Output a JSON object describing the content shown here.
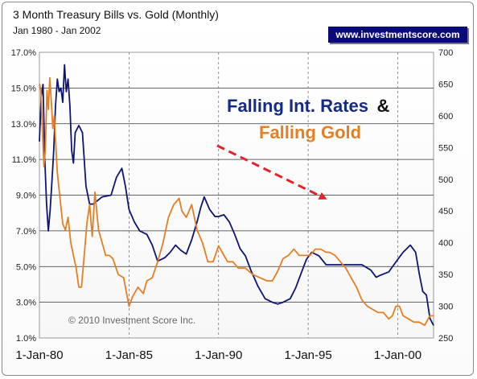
{
  "header": {
    "title": "3 Month Treasury Bills vs. Gold (Monthly)",
    "subtitle": "Jan 1980 - Jan 2002",
    "brand": "www.investmentscore.com"
  },
  "annotation": {
    "line1_part1": "Falling Int. Rates",
    "line1_part2": "&",
    "line2": "Falling Gold"
  },
  "copyright": "© 2010 Investment Score Inc.",
  "colors": {
    "tbill": "#0b1676",
    "gold": "#e67e22",
    "arrow": "#e3232c",
    "brand_bg": "#0a0a78"
  },
  "chart_data": {
    "type": "line",
    "x_ticks": [
      "1-Jan-80",
      "1-Jan-85",
      "1-Jan-90",
      "1-Jan-95",
      "1-Jan-00"
    ],
    "x_range": [
      1980.0,
      2002.0
    ],
    "y_left_ticks": [
      "1.0%",
      "3.0%",
      "5.0%",
      "7.0%",
      "9.0%",
      "11.0%",
      "13.0%",
      "15.0%",
      "17.0%"
    ],
    "y_left_range": [
      1.0,
      17.0
    ],
    "y_right_ticks": [
      "250",
      "300",
      "350",
      "400",
      "450",
      "500",
      "550",
      "600",
      "650",
      "700"
    ],
    "y_right_range": [
      250,
      700
    ],
    "grid": true,
    "series": [
      {
        "axis": "left",
        "x": [
          1980.0,
          1980.1,
          1980.2,
          1980.3,
          1980.4,
          1980.5,
          1980.6,
          1980.7,
          1980.8,
          1980.9,
          1981.0,
          1981.1,
          1981.2,
          1981.3,
          1981.4,
          1981.5,
          1981.6,
          1981.7,
          1981.8,
          1981.9,
          1982.0,
          1982.2,
          1982.4,
          1982.6,
          1982.8,
          1983.0,
          1983.5,
          1984.0,
          1984.3,
          1984.6,
          1984.8,
          1985.0,
          1985.3,
          1985.6,
          1986.0,
          1986.3,
          1986.6,
          1987.0,
          1987.3,
          1987.6,
          1987.9,
          1988.2,
          1988.5,
          1988.8,
          1989.0,
          1989.2,
          1989.5,
          1989.8,
          1990.0,
          1990.3,
          1990.6,
          1990.9,
          1991.2,
          1991.5,
          1991.8,
          1992.2,
          1992.6,
          1993.0,
          1993.3,
          1993.6,
          1994.0,
          1994.3,
          1994.6,
          1994.9,
          1995.2,
          1995.6,
          1996.0,
          1996.5,
          1997.0,
          1997.5,
          1998.0,
          1998.5,
          1998.8,
          1999.0,
          1999.5,
          2000.0,
          2000.3,
          2000.5,
          2000.7,
          2001.0,
          2001.2,
          2001.4,
          2001.6,
          2001.8,
          2002.0
        ],
        "values": [
          12.0,
          14.5,
          15.2,
          11.0,
          8.5,
          7.0,
          8.2,
          9.8,
          11.5,
          14.0,
          15.5,
          14.8,
          15.0,
          14.2,
          16.3,
          14.8,
          15.5,
          14.0,
          11.5,
          10.8,
          12.5,
          12.9,
          12.5,
          9.5,
          8.5,
          8.5,
          8.9,
          9.0,
          10.0,
          10.5,
          9.5,
          8.2,
          7.5,
          7.0,
          6.8,
          6.2,
          5.3,
          5.5,
          5.8,
          6.2,
          5.9,
          5.7,
          6.5,
          7.5,
          8.3,
          8.9,
          8.2,
          7.8,
          7.8,
          7.9,
          7.5,
          6.8,
          6.0,
          5.6,
          4.8,
          3.9,
          3.2,
          3.0,
          2.9,
          3.0,
          3.2,
          3.8,
          4.6,
          5.4,
          5.8,
          5.6,
          5.1,
          5.1,
          5.1,
          5.1,
          5.1,
          4.8,
          4.4,
          4.5,
          4.7,
          5.4,
          5.8,
          6.0,
          6.2,
          5.8,
          4.6,
          3.6,
          3.4,
          2.1,
          1.7
        ]
      },
      {
        "axis": "right",
        "x": [
          1980.0,
          1980.08,
          1980.17,
          1980.25,
          1980.33,
          1980.42,
          1980.5,
          1980.58,
          1980.67,
          1980.75,
          1980.83,
          1980.92,
          1981.0,
          1981.15,
          1981.3,
          1981.45,
          1981.6,
          1981.75,
          1981.9,
          1982.05,
          1982.2,
          1982.35,
          1982.5,
          1982.65,
          1982.8,
          1982.95,
          1983.1,
          1983.3,
          1983.5,
          1983.7,
          1983.9,
          1984.1,
          1984.4,
          1984.7,
          1985.0,
          1985.2,
          1985.5,
          1985.8,
          1986.0,
          1986.3,
          1986.6,
          1986.9,
          1987.2,
          1987.5,
          1987.8,
          1987.95,
          1988.2,
          1988.5,
          1988.8,
          1989.1,
          1989.4,
          1989.7,
          1990.0,
          1990.2,
          1990.5,
          1990.8,
          1991.1,
          1991.5,
          1991.9,
          1992.3,
          1992.7,
          1993.0,
          1993.3,
          1993.6,
          1993.9,
          1994.2,
          1994.5,
          1994.8,
          1995.1,
          1995.4,
          1995.7,
          1996.0,
          1996.2,
          1996.5,
          1996.8,
          1997.1,
          1997.4,
          1997.7,
          1998.0,
          1998.3,
          1998.6,
          1998.9,
          1999.2,
          1999.5,
          1999.7,
          1999.9,
          2000.1,
          2000.3,
          2000.6,
          2000.9,
          2001.2,
          2001.5,
          2001.8,
          2002.0
        ],
        "values": [
          650,
          640,
          575,
          520,
          545,
          640,
          610,
          660,
          620,
          580,
          600,
          550,
          510,
          470,
          430,
          420,
          440,
          400,
          380,
          360,
          330,
          330,
          380,
          430,
          460,
          410,
          480,
          420,
          400,
          380,
          380,
          375,
          350,
          345,
          300,
          315,
          330,
          320,
          340,
          345,
          370,
          400,
          440,
          460,
          470,
          450,
          440,
          460,
          420,
          400,
          370,
          370,
          395,
          385,
          370,
          370,
          360,
          360,
          350,
          345,
          340,
          340,
          355,
          375,
          380,
          390,
          380,
          380,
          380,
          390,
          390,
          385,
          385,
          380,
          370,
          360,
          345,
          330,
          310,
          300,
          295,
          290,
          290,
          280,
          285,
          300,
          300,
          285,
          280,
          275,
          275,
          270,
          285,
          285
        ]
      }
    ]
  }
}
